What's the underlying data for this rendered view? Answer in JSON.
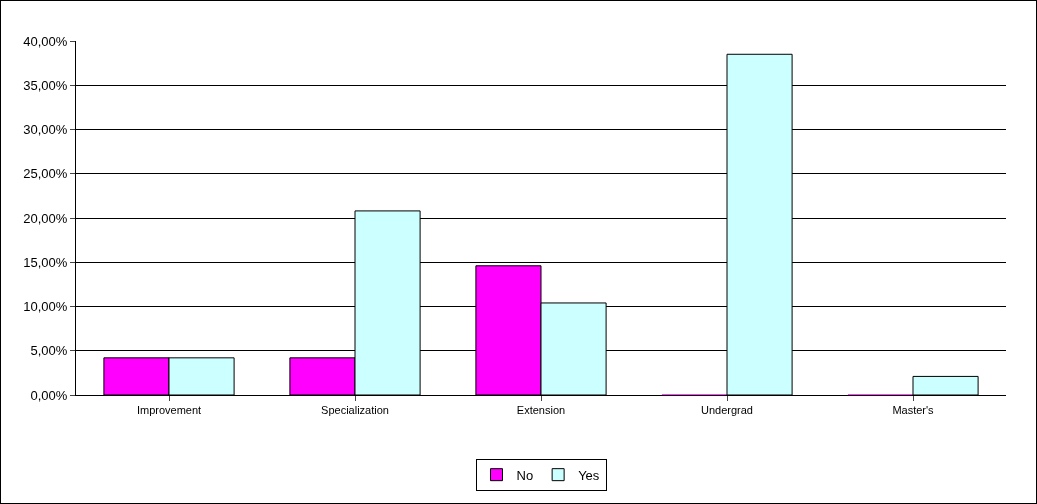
{
  "chart_data": {
    "type": "bar",
    "categories": [
      "Improvement",
      "Specialization",
      "Extension",
      "Undergrad",
      "Master's"
    ],
    "series": [
      {
        "name": "No",
        "color": "#ff00ff",
        "values": [
          4.2,
          4.2,
          14.6,
          0,
          0
        ]
      },
      {
        "name": "Yes",
        "color": "#ccffff",
        "values": [
          4.2,
          20.8,
          10.4,
          38.5,
          2.1
        ]
      }
    ],
    "ylim": [
      0,
      40
    ],
    "yticks": [
      {
        "value": 0,
        "label": "0,00%"
      },
      {
        "value": 5,
        "label": "5,00%"
      },
      {
        "value": 10,
        "label": "10,00%"
      },
      {
        "value": 15,
        "label": "15,00%"
      },
      {
        "value": 20,
        "label": "20,00%"
      },
      {
        "value": 25,
        "label": "25,00%"
      },
      {
        "value": 30,
        "label": "30,00%"
      },
      {
        "value": 35,
        "label": "35,00%"
      },
      {
        "value": 40,
        "label": "40,00%"
      }
    ],
    "grid": "y",
    "legend": "bottom"
  }
}
